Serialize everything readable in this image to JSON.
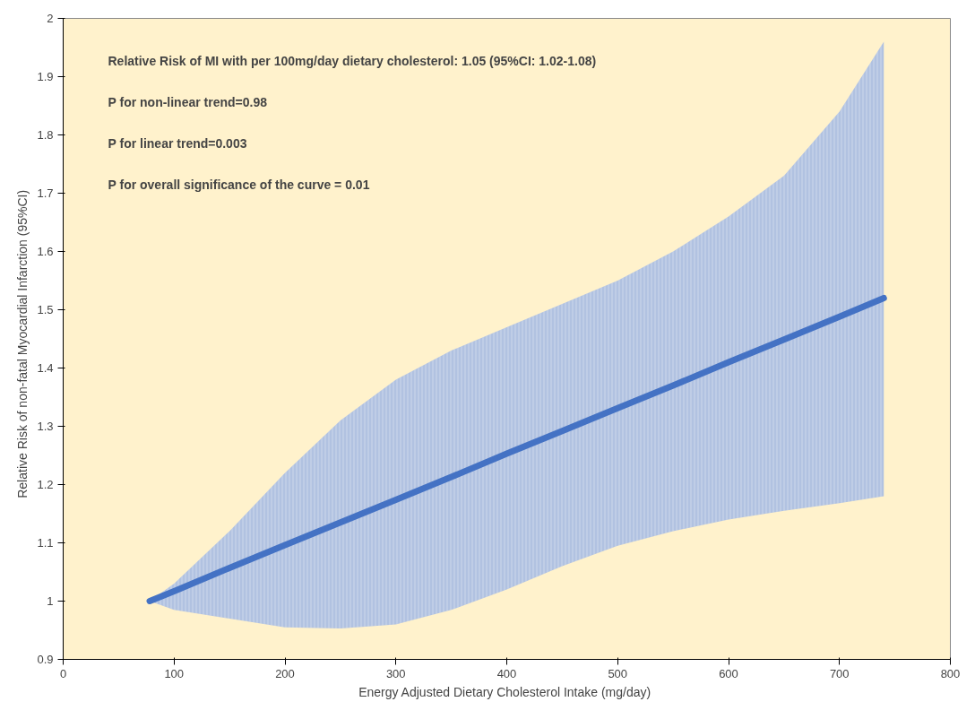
{
  "chart_data": {
    "type": "line",
    "xlabel": "Energy Adjusted Dietary Cholesterol  Intake (mg/day)",
    "ylabel": "Relative  Risk of non-fatal  Myocardial Infarction  (95%CI)",
    "x": [
      78,
      100,
      150,
      200,
      250,
      300,
      350,
      400,
      450,
      500,
      550,
      600,
      650,
      700,
      740
    ],
    "series": [
      {
        "color": "#4472c4",
        "values": [
          1.0,
          1.017,
          1.057,
          1.096,
          1.135,
          1.174,
          1.213,
          1.253,
          1.292,
          1.331,
          1.37,
          1.41,
          1.449,
          1.488,
          1.52
        ],
        "lower": [
          1.0,
          0.985,
          0.97,
          0.955,
          0.953,
          0.96,
          0.985,
          1.02,
          1.06,
          1.095,
          1.12,
          1.14,
          1.155,
          1.168,
          1.18
        ],
        "upper": [
          1.0,
          1.03,
          1.12,
          1.22,
          1.31,
          1.38,
          1.43,
          1.47,
          1.51,
          1.55,
          1.6,
          1.66,
          1.73,
          1.84,
          1.96
        ]
      }
    ],
    "xlim": [
      0,
      800
    ],
    "xticks": [
      0,
      100,
      200,
      300,
      400,
      500,
      600,
      700,
      800
    ],
    "ylim": [
      0.9,
      2
    ],
    "yticks": [
      0.9,
      1,
      1.1,
      1.2,
      1.3,
      1.4,
      1.5,
      1.6,
      1.7,
      1.8,
      1.9,
      2
    ],
    "annotations": [
      "Relative Risk of MI with per 100mg/day dietary cholesterol: 1.05 (95%CI: 1.02-1.08)",
      "P for non-linear trend=0.98",
      "P for linear trend=0.003",
      "P for overall significance of the curve = 0.01"
    ],
    "grid": false,
    "marker": "none",
    "line_style": "solid"
  }
}
